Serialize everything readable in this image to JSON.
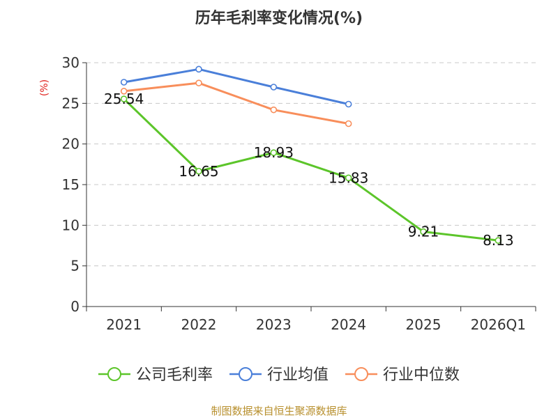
{
  "chart_data": {
    "type": "line",
    "title": "历年毛利率变化情况(%)",
    "ylabel": "(%)",
    "xlabel": "",
    "categories": [
      "2021",
      "2022",
      "2023",
      "2024",
      "2025",
      "2026Q1"
    ],
    "ylim": [
      0,
      30
    ],
    "yticks": [
      0,
      5,
      10,
      15,
      20,
      25,
      30
    ],
    "grid": true,
    "legend_position": "bottom",
    "series": [
      {
        "name": "公司毛利率",
        "color": "#5cc52a",
        "values": [
          25.54,
          16.65,
          18.93,
          15.83,
          9.21,
          8.13
        ],
        "labels": [
          "25.54",
          "16.65",
          "18.93",
          "15.83",
          "9.21",
          "8.13"
        ]
      },
      {
        "name": "行业均值",
        "color": "#4a7fd9",
        "values": [
          27.6,
          29.2,
          27.0,
          24.9,
          null,
          null
        ]
      },
      {
        "name": "行业中位数",
        "color": "#f88e5b",
        "values": [
          26.5,
          27.5,
          24.2,
          22.5,
          null,
          null
        ]
      }
    ]
  },
  "footer": {
    "source": "制图数据来自恒生聚源数据库"
  }
}
